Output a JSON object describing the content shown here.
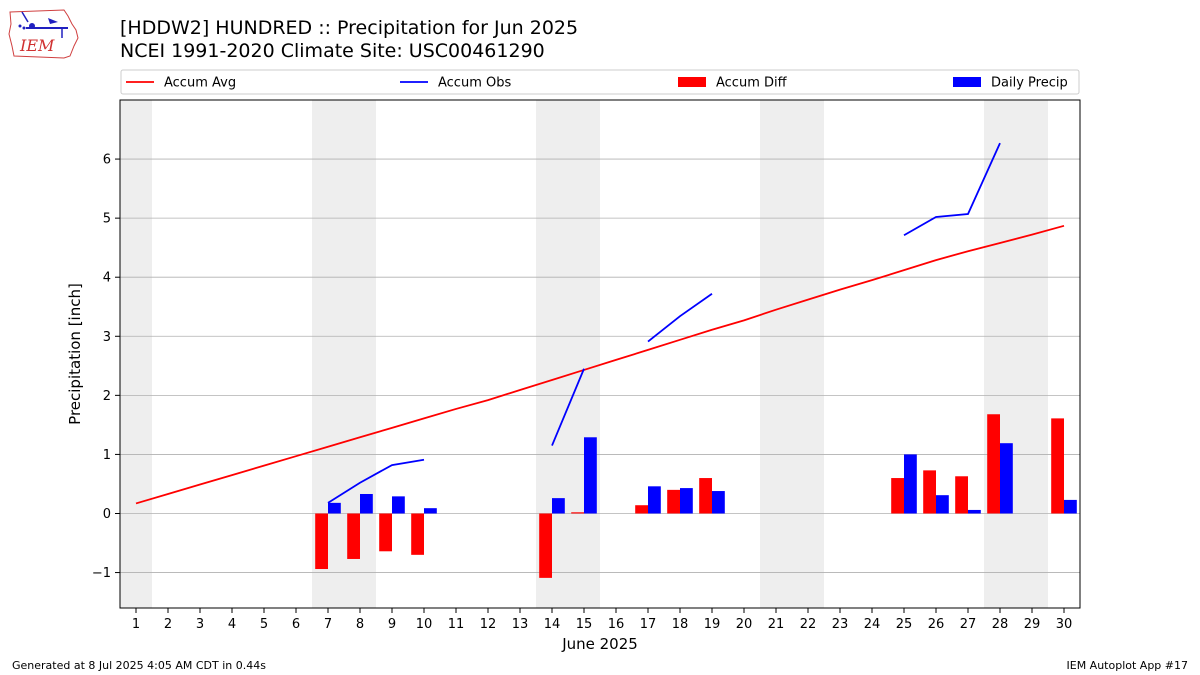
{
  "header": {
    "title_line1": "[HDDW2] HUNDRED :: Precipitation for Jun 2025",
    "title_line2": "NCEI 1991-2020 Climate Site: USC00461290",
    "logo_text": "IEM"
  },
  "footer": {
    "left": "Generated at 8 Jul 2025 4:05 AM CDT in 0.44s",
    "right": "IEM Autoplot App #17"
  },
  "colors": {
    "accum_avg": "#ff0000",
    "accum_obs": "#0000ff",
    "accum_diff": "#ff0000",
    "daily_precip": "#0000ff",
    "weekend_shade": "#eeeeee",
    "grid": "#b0b0b0"
  },
  "chart_data": {
    "type": "bar",
    "xlabel": "June 2025",
    "ylabel": "Precipitation [inch]",
    "xlim": [
      0.5,
      30.5
    ],
    "ylim": [
      -1.6,
      7.0
    ],
    "yticks": [
      -1,
      0,
      1,
      2,
      3,
      4,
      5,
      6
    ],
    "ytick_labels": [
      "−1",
      "0",
      "1",
      "2",
      "3",
      "4",
      "5",
      "6"
    ],
    "days": [
      1,
      2,
      3,
      4,
      5,
      6,
      7,
      8,
      9,
      10,
      11,
      12,
      13,
      14,
      15,
      16,
      17,
      18,
      19,
      20,
      21,
      22,
      23,
      24,
      25,
      26,
      27,
      28,
      29,
      30
    ],
    "grid": true,
    "legend_position": "top",
    "legend": [
      "Accum Avg",
      "Accum Obs",
      "Accum Diff",
      "Daily Precip"
    ],
    "shaded_days": [
      [
        1,
        1
      ],
      [
        7,
        8
      ],
      [
        14,
        15
      ],
      [
        21,
        22
      ],
      [
        28,
        29
      ]
    ],
    "series": [
      {
        "name": "Accum Avg",
        "kind": "line",
        "values": [
          0.17,
          0.33,
          0.49,
          0.65,
          0.81,
          0.97,
          1.13,
          1.29,
          1.45,
          1.61,
          1.77,
          1.92,
          2.09,
          2.26,
          2.43,
          2.6,
          2.77,
          2.94,
          3.11,
          3.27,
          3.45,
          3.62,
          3.79,
          3.95,
          4.12,
          4.29,
          4.44,
          4.58,
          4.72,
          4.87
        ]
      },
      {
        "name": "Accum Obs",
        "kind": "line",
        "segments": [
          {
            "days": [
              7,
              8,
              9,
              10
            ],
            "values": [
              0.18,
              0.52,
              0.82,
              0.91
            ]
          },
          {
            "days": [
              14,
              15
            ],
            "values": [
              1.15,
              2.45
            ]
          },
          {
            "days": [
              17,
              18,
              19
            ],
            "values": [
              2.91,
              3.34,
              3.72
            ]
          },
          {
            "days": [
              25,
              26,
              27,
              28
            ],
            "values": [
              4.71,
              5.02,
              5.07,
              6.27
            ]
          }
        ]
      },
      {
        "name": "Accum Diff",
        "kind": "bar",
        "days": [
          7,
          8,
          9,
          10,
          14,
          15,
          17,
          18,
          19,
          25,
          26,
          27,
          28,
          30
        ],
        "values": [
          -0.94,
          -0.77,
          -0.64,
          -0.7,
          -1.09,
          0.02,
          0.14,
          0.4,
          0.6,
          0.6,
          0.73,
          0.63,
          1.68,
          1.61
        ]
      },
      {
        "name": "Daily Precip",
        "kind": "bar",
        "days": [
          7,
          8,
          9,
          10,
          14,
          15,
          17,
          18,
          19,
          25,
          26,
          27,
          28,
          30
        ],
        "values": [
          0.18,
          0.33,
          0.29,
          0.09,
          0.26,
          1.29,
          0.46,
          0.43,
          0.38,
          1.0,
          0.31,
          0.06,
          1.19,
          0.23
        ]
      }
    ]
  }
}
